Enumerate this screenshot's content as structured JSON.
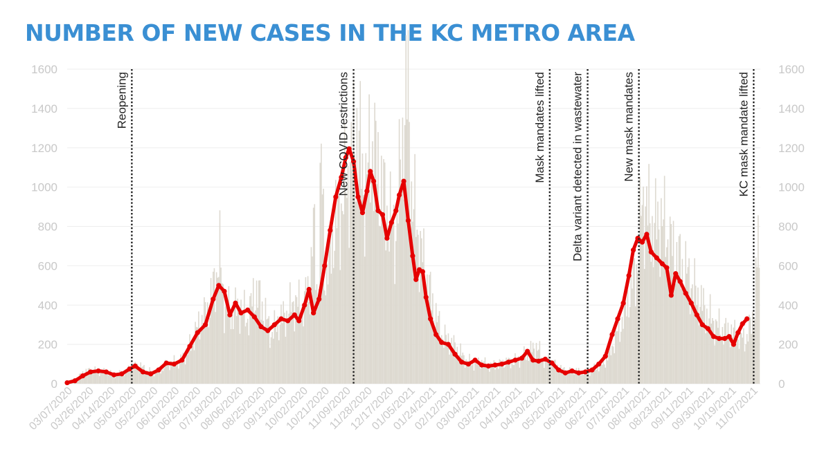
{
  "title": "NUMBER OF NEW CASES IN THE KC METRO AREA",
  "colors": {
    "title": "#3a8fd3",
    "bars": "#ddd9d0",
    "line": "#e50000",
    "grid": "#eeeeee",
    "ticks": "#c8c8c8",
    "annotation": "#222222"
  },
  "chart_data": {
    "type": "bar",
    "overlay": "line",
    "title": "NUMBER OF NEW CASES IN THE KC METRO AREA",
    "xlabel": "",
    "ylabel": "",
    "ylim": [
      0,
      1600
    ],
    "y_ticks": [
      "0",
      "200",
      "400",
      "600",
      "800",
      "1000",
      "1200",
      "1400",
      "1600"
    ],
    "grid": true,
    "date_range": [
      "2020-03-07",
      "2021-11-19"
    ],
    "x_tick_labels": [
      "03/07/2020",
      "03/26/2020",
      "04/14/2020",
      "05/03/2020",
      "05/22/2020",
      "06/10/2020",
      "06/29/2020",
      "07/18/2020",
      "08/06/2020",
      "08/25/2020",
      "09/13/2020",
      "10/02/2020",
      "10/21/2020",
      "11/09/2020",
      "11/28/2020",
      "12/17/2020",
      "01/05/2021",
      "01/24/2021",
      "02/12/2021",
      "03/04/2021",
      "03/23/2021",
      "04/11/2021",
      "04/30/2021",
      "05/20/2021",
      "06/08/2021",
      "06/27/2021",
      "07/16/2021",
      "08/04/2021",
      "08/23/2021",
      "09/11/2021",
      "09/30/2021",
      "10/19/2021",
      "11/07/2021"
    ],
    "annotations": [
      {
        "date": "2020-05-04",
        "label": "Reopening"
      },
      {
        "date": "2020-11-19",
        "label": "New COVID restrictions"
      },
      {
        "date": "2021-05-14",
        "label": "Mask mandates lifted"
      },
      {
        "date": "2021-06-17",
        "label": "Delta variant detected in wastewater"
      },
      {
        "date": "2021-08-02",
        "label": "New mask mandates"
      },
      {
        "date": "2021-11-13",
        "label": "KC mask mandate lifted"
      }
    ],
    "series": [
      {
        "kind": "bar",
        "unit": "daily new cases",
        "points": [
          [
            "2020-03-08",
            10
          ],
          [
            "2020-03-15",
            25
          ],
          [
            "2020-03-22",
            60
          ],
          [
            "2020-03-29",
            70
          ],
          [
            "2020-04-05",
            60
          ],
          [
            "2020-04-12",
            60
          ],
          [
            "2020-04-19",
            45
          ],
          [
            "2020-04-26",
            55
          ],
          [
            "2020-05-03",
            80
          ],
          [
            "2020-05-10",
            95
          ],
          [
            "2020-05-17",
            70
          ],
          [
            "2020-05-24",
            55
          ],
          [
            "2020-05-31",
            75
          ],
          [
            "2020-06-07",
            110
          ],
          [
            "2020-06-14",
            105
          ],
          [
            "2020-06-21",
            140
          ],
          [
            "2020-06-28",
            230
          ],
          [
            "2020-07-05",
            320
          ],
          [
            "2020-07-12",
            380
          ],
          [
            "2020-07-19",
            560
          ],
          [
            "2020-07-22",
            650
          ],
          [
            "2020-07-26",
            400
          ],
          [
            "2020-08-02",
            360
          ],
          [
            "2020-08-09",
            390
          ],
          [
            "2020-08-16",
            330
          ],
          [
            "2020-08-23",
            480
          ],
          [
            "2020-08-30",
            380
          ],
          [
            "2020-09-06",
            250
          ],
          [
            "2020-09-13",
            320
          ],
          [
            "2020-09-20",
            350
          ],
          [
            "2020-09-27",
            420
          ],
          [
            "2020-10-04",
            380
          ],
          [
            "2020-10-11",
            500
          ],
          [
            "2020-10-14",
            800
          ],
          [
            "2020-10-18",
            420
          ],
          [
            "2020-10-21",
            1120
          ],
          [
            "2020-10-25",
            520
          ],
          [
            "2020-11-01",
            770
          ],
          [
            "2020-11-08",
            900
          ],
          [
            "2020-11-15",
            1060
          ],
          [
            "2020-11-22",
            1300
          ],
          [
            "2020-11-29",
            980
          ],
          [
            "2020-12-06",
            1220
          ],
          [
            "2020-12-13",
            1020
          ],
          [
            "2020-12-20",
            850
          ],
          [
            "2020-12-27",
            760
          ],
          [
            "2021-01-03",
            1330
          ],
          [
            "2021-01-07",
            1480
          ],
          [
            "2021-01-10",
            960
          ],
          [
            "2021-01-17",
            720
          ],
          [
            "2021-01-24",
            520
          ],
          [
            "2021-01-31",
            360
          ],
          [
            "2021-02-07",
            240
          ],
          [
            "2021-02-14",
            210
          ],
          [
            "2021-02-21",
            170
          ],
          [
            "2021-02-28",
            120
          ],
          [
            "2021-03-07",
            100
          ],
          [
            "2021-03-14",
            110
          ],
          [
            "2021-03-21",
            90
          ],
          [
            "2021-03-28",
            95
          ],
          [
            "2021-04-04",
            110
          ],
          [
            "2021-04-11",
            110
          ],
          [
            "2021-04-18",
            130
          ],
          [
            "2021-04-25",
            160
          ],
          [
            "2021-05-02",
            190
          ],
          [
            "2021-05-09",
            120
          ],
          [
            "2021-05-16",
            110
          ],
          [
            "2021-05-23",
            80
          ],
          [
            "2021-05-30",
            60
          ],
          [
            "2021-06-06",
            70
          ],
          [
            "2021-06-13",
            55
          ],
          [
            "2021-06-20",
            65
          ],
          [
            "2021-06-27",
            90
          ],
          [
            "2021-07-04",
            120
          ],
          [
            "2021-07-11",
            220
          ],
          [
            "2021-07-18",
            320
          ],
          [
            "2021-07-25",
            470
          ],
          [
            "2021-08-01",
            620
          ],
          [
            "2021-08-05",
            930
          ],
          [
            "2021-08-08",
            900
          ],
          [
            "2021-08-15",
            780
          ],
          [
            "2021-08-22",
            840
          ],
          [
            "2021-08-29",
            720
          ],
          [
            "2021-09-05",
            640
          ],
          [
            "2021-09-12",
            580
          ],
          [
            "2021-09-19",
            500
          ],
          [
            "2021-09-26",
            420
          ],
          [
            "2021-10-03",
            350
          ],
          [
            "2021-10-10",
            300
          ],
          [
            "2021-10-17",
            270
          ],
          [
            "2021-10-24",
            260
          ],
          [
            "2021-10-31",
            240
          ],
          [
            "2021-11-07",
            230
          ],
          [
            "2021-11-14",
            380
          ],
          [
            "2021-11-17",
            740
          ],
          [
            "2021-11-19",
            320
          ]
        ]
      },
      {
        "kind": "line",
        "unit": "7-day average",
        "points": [
          [
            "2020-03-07",
            5
          ],
          [
            "2020-03-14",
            15
          ],
          [
            "2020-03-21",
            40
          ],
          [
            "2020-03-28",
            60
          ],
          [
            "2020-04-04",
            65
          ],
          [
            "2020-04-11",
            60
          ],
          [
            "2020-04-18",
            45
          ],
          [
            "2020-04-25",
            50
          ],
          [
            "2020-05-02",
            75
          ],
          [
            "2020-05-07",
            90
          ],
          [
            "2020-05-14",
            60
          ],
          [
            "2020-05-21",
            50
          ],
          [
            "2020-05-28",
            70
          ],
          [
            "2020-06-04",
            105
          ],
          [
            "2020-06-11",
            100
          ],
          [
            "2020-06-18",
            120
          ],
          [
            "2020-06-25",
            190
          ],
          [
            "2020-07-02",
            260
          ],
          [
            "2020-07-09",
            300
          ],
          [
            "2020-07-16",
            430
          ],
          [
            "2020-07-21",
            500
          ],
          [
            "2020-07-26",
            470
          ],
          [
            "2020-07-31",
            350
          ],
          [
            "2020-08-05",
            410
          ],
          [
            "2020-08-10",
            360
          ],
          [
            "2020-08-16",
            375
          ],
          [
            "2020-08-22",
            340
          ],
          [
            "2020-08-28",
            290
          ],
          [
            "2020-09-03",
            270
          ],
          [
            "2020-09-09",
            300
          ],
          [
            "2020-09-15",
            330
          ],
          [
            "2020-09-21",
            320
          ],
          [
            "2020-09-27",
            350
          ],
          [
            "2020-10-01",
            320
          ],
          [
            "2020-10-06",
            400
          ],
          [
            "2020-10-10",
            480
          ],
          [
            "2020-10-14",
            360
          ],
          [
            "2020-10-19",
            430
          ],
          [
            "2020-10-24",
            600
          ],
          [
            "2020-10-29",
            780
          ],
          [
            "2020-11-03",
            950
          ],
          [
            "2020-11-08",
            1050
          ],
          [
            "2020-11-12",
            1150
          ],
          [
            "2020-11-15",
            1195
          ],
          [
            "2020-11-19",
            1130
          ],
          [
            "2020-11-23",
            950
          ],
          [
            "2020-11-27",
            870
          ],
          [
            "2020-12-01",
            980
          ],
          [
            "2020-12-04",
            1080
          ],
          [
            "2020-12-07",
            1030
          ],
          [
            "2020-12-11",
            880
          ],
          [
            "2020-12-15",
            860
          ],
          [
            "2020-12-19",
            740
          ],
          [
            "2020-12-23",
            820
          ],
          [
            "2020-12-27",
            880
          ],
          [
            "2020-12-30",
            960
          ],
          [
            "2021-01-03",
            1030
          ],
          [
            "2021-01-07",
            830
          ],
          [
            "2021-01-11",
            650
          ],
          [
            "2021-01-14",
            530
          ],
          [
            "2021-01-17",
            580
          ],
          [
            "2021-01-20",
            570
          ],
          [
            "2021-01-23",
            440
          ],
          [
            "2021-01-27",
            330
          ],
          [
            "2021-02-01",
            250
          ],
          [
            "2021-02-06",
            210
          ],
          [
            "2021-02-12",
            200
          ],
          [
            "2021-02-18",
            150
          ],
          [
            "2021-02-24",
            110
          ],
          [
            "2021-03-02",
            100
          ],
          [
            "2021-03-08",
            120
          ],
          [
            "2021-03-14",
            95
          ],
          [
            "2021-03-20",
            90
          ],
          [
            "2021-03-26",
            95
          ],
          [
            "2021-04-01",
            100
          ],
          [
            "2021-04-07",
            110
          ],
          [
            "2021-04-13",
            120
          ],
          [
            "2021-04-19",
            130
          ],
          [
            "2021-04-24",
            165
          ],
          [
            "2021-04-29",
            120
          ],
          [
            "2021-05-04",
            115
          ],
          [
            "2021-05-10",
            125
          ],
          [
            "2021-05-16",
            105
          ],
          [
            "2021-05-22",
            70
          ],
          [
            "2021-05-28",
            55
          ],
          [
            "2021-06-03",
            65
          ],
          [
            "2021-06-09",
            55
          ],
          [
            "2021-06-15",
            60
          ],
          [
            "2021-06-21",
            70
          ],
          [
            "2021-06-27",
            100
          ],
          [
            "2021-07-03",
            140
          ],
          [
            "2021-07-09",
            250
          ],
          [
            "2021-07-14",
            330
          ],
          [
            "2021-07-19",
            410
          ],
          [
            "2021-07-24",
            550
          ],
          [
            "2021-07-28",
            680
          ],
          [
            "2021-08-01",
            740
          ],
          [
            "2021-08-05",
            720
          ],
          [
            "2021-08-09",
            760
          ],
          [
            "2021-08-13",
            670
          ],
          [
            "2021-08-18",
            640
          ],
          [
            "2021-08-23",
            610
          ],
          [
            "2021-08-27",
            590
          ],
          [
            "2021-08-31",
            450
          ],
          [
            "2021-09-04",
            560
          ],
          [
            "2021-09-08",
            520
          ],
          [
            "2021-09-13",
            460
          ],
          [
            "2021-09-18",
            410
          ],
          [
            "2021-09-23",
            350
          ],
          [
            "2021-09-28",
            300
          ],
          [
            "2021-10-03",
            280
          ],
          [
            "2021-10-08",
            240
          ],
          [
            "2021-10-13",
            230
          ],
          [
            "2021-10-18",
            230
          ],
          [
            "2021-10-22",
            240
          ],
          [
            "2021-10-26",
            200
          ],
          [
            "2021-10-30",
            260
          ],
          [
            "2021-11-03",
            305
          ],
          [
            "2021-11-07",
            330
          ]
        ]
      }
    ]
  }
}
